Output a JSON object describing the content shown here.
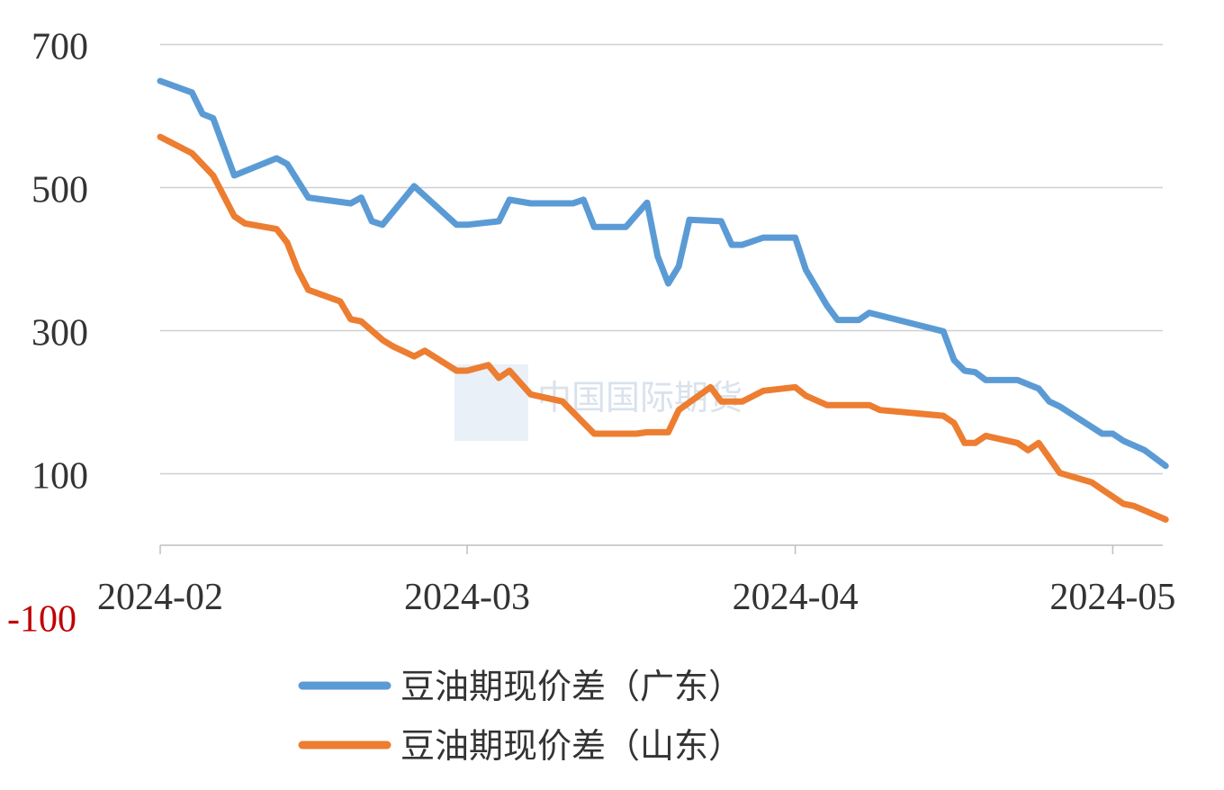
{
  "chart_data": {
    "type": "line",
    "title": "",
    "xlabel": "",
    "ylabel": "",
    "ylim": [
      -100,
      700
    ],
    "y_ticks": [
      "700",
      "500",
      "300",
      "100",
      "-100"
    ],
    "y_tick_colors": {
      "-100": "#c00000"
    },
    "x_ticks": [
      {
        "label": "2024-02",
        "date": "2024-02-01"
      },
      {
        "label": "2024-03",
        "date": "2024-03-01"
      },
      {
        "label": "2024-04",
        "date": "2024-04-01"
      },
      {
        "label": "2024-05",
        "date": "2024-05-01"
      }
    ],
    "grid": "horizontal",
    "legend": "bottom",
    "watermark": "CIFCO 中国国际期货",
    "series": [
      {
        "name": "豆油期现价差（广东）",
        "color": "#5b9bd5",
        "points": [
          [
            "2024-02-01",
            649
          ],
          [
            "2024-02-04",
            633
          ],
          [
            "2024-02-05",
            603
          ],
          [
            "2024-02-06",
            597
          ],
          [
            "2024-02-08",
            517
          ],
          [
            "2024-02-12",
            541
          ],
          [
            "2024-02-13",
            533
          ],
          [
            "2024-02-15",
            486
          ],
          [
            "2024-02-19",
            478
          ],
          [
            "2024-02-20",
            486
          ],
          [
            "2024-02-21",
            453
          ],
          [
            "2024-02-22",
            448
          ],
          [
            "2024-02-25",
            502
          ],
          [
            "2024-02-27",
            475
          ],
          [
            "2024-02-29",
            448
          ],
          [
            "2024-03-01",
            448
          ],
          [
            "2024-03-04",
            453
          ],
          [
            "2024-03-05",
            483
          ],
          [
            "2024-03-07",
            478
          ],
          [
            "2024-03-11",
            478
          ],
          [
            "2024-03-12",
            483
          ],
          [
            "2024-03-13",
            445
          ],
          [
            "2024-03-16",
            445
          ],
          [
            "2024-03-18",
            479
          ],
          [
            "2024-03-19",
            404
          ],
          [
            "2024-03-20",
            366
          ],
          [
            "2024-03-21",
            390
          ],
          [
            "2024-03-22",
            455
          ],
          [
            "2024-03-25",
            453
          ],
          [
            "2024-03-26",
            420
          ],
          [
            "2024-03-27",
            420
          ],
          [
            "2024-03-29",
            430
          ],
          [
            "2024-04-01",
            430
          ],
          [
            "2024-04-02",
            385
          ],
          [
            "2024-04-04",
            335
          ],
          [
            "2024-04-05",
            315
          ],
          [
            "2024-04-07",
            315
          ],
          [
            "2024-04-08",
            325
          ],
          [
            "2024-04-15",
            299
          ],
          [
            "2024-04-16",
            259
          ],
          [
            "2024-04-17",
            244
          ],
          [
            "2024-04-18",
            242
          ],
          [
            "2024-04-19",
            231
          ],
          [
            "2024-04-22",
            231
          ],
          [
            "2024-04-24",
            219
          ],
          [
            "2024-04-25",
            201
          ],
          [
            "2024-04-26",
            194
          ],
          [
            "2024-04-30",
            156
          ],
          [
            "2024-05-01",
            156
          ],
          [
            "2024-05-02",
            146
          ],
          [
            "2024-05-04",
            133
          ],
          [
            "2024-05-06",
            111
          ]
        ]
      },
      {
        "name": "豆油期现价差（山东）",
        "color": "#ed7d31",
        "points": [
          [
            "2024-02-01",
            571
          ],
          [
            "2024-02-04",
            548
          ],
          [
            "2024-02-06",
            517
          ],
          [
            "2024-02-08",
            460
          ],
          [
            "2024-02-09",
            450
          ],
          [
            "2024-02-12",
            442
          ],
          [
            "2024-02-13",
            423
          ],
          [
            "2024-02-14",
            385
          ],
          [
            "2024-02-15",
            357
          ],
          [
            "2024-02-18",
            341
          ],
          [
            "2024-02-19",
            316
          ],
          [
            "2024-02-20",
            313
          ],
          [
            "2024-02-22",
            287
          ],
          [
            "2024-02-23",
            278
          ],
          [
            "2024-02-25",
            264
          ],
          [
            "2024-02-26",
            272
          ],
          [
            "2024-02-29",
            244
          ],
          [
            "2024-03-01",
            244
          ],
          [
            "2024-03-03",
            252
          ],
          [
            "2024-03-04",
            234
          ],
          [
            "2024-03-05",
            244
          ],
          [
            "2024-03-07",
            211
          ],
          [
            "2024-03-10",
            201
          ],
          [
            "2024-03-13",
            156
          ],
          [
            "2024-03-17",
            156
          ],
          [
            "2024-03-18",
            158
          ],
          [
            "2024-03-20",
            158
          ],
          [
            "2024-03-21",
            189
          ],
          [
            "2024-03-24",
            221
          ],
          [
            "2024-03-25",
            201
          ],
          [
            "2024-03-27",
            201
          ],
          [
            "2024-03-29",
            216
          ],
          [
            "2024-04-01",
            221
          ],
          [
            "2024-04-02",
            209
          ],
          [
            "2024-04-04",
            196
          ],
          [
            "2024-04-08",
            196
          ],
          [
            "2024-04-09",
            189
          ],
          [
            "2024-04-15",
            181
          ],
          [
            "2024-04-16",
            171
          ],
          [
            "2024-04-17",
            143
          ],
          [
            "2024-04-18",
            143
          ],
          [
            "2024-04-19",
            153
          ],
          [
            "2024-04-22",
            143
          ],
          [
            "2024-04-23",
            133
          ],
          [
            "2024-04-24",
            143
          ],
          [
            "2024-04-26",
            101
          ],
          [
            "2024-04-29",
            88
          ],
          [
            "2024-04-30",
            78
          ],
          [
            "2024-05-02",
            58
          ],
          [
            "2024-05-03",
            55
          ],
          [
            "2024-05-06",
            36
          ]
        ]
      }
    ]
  }
}
